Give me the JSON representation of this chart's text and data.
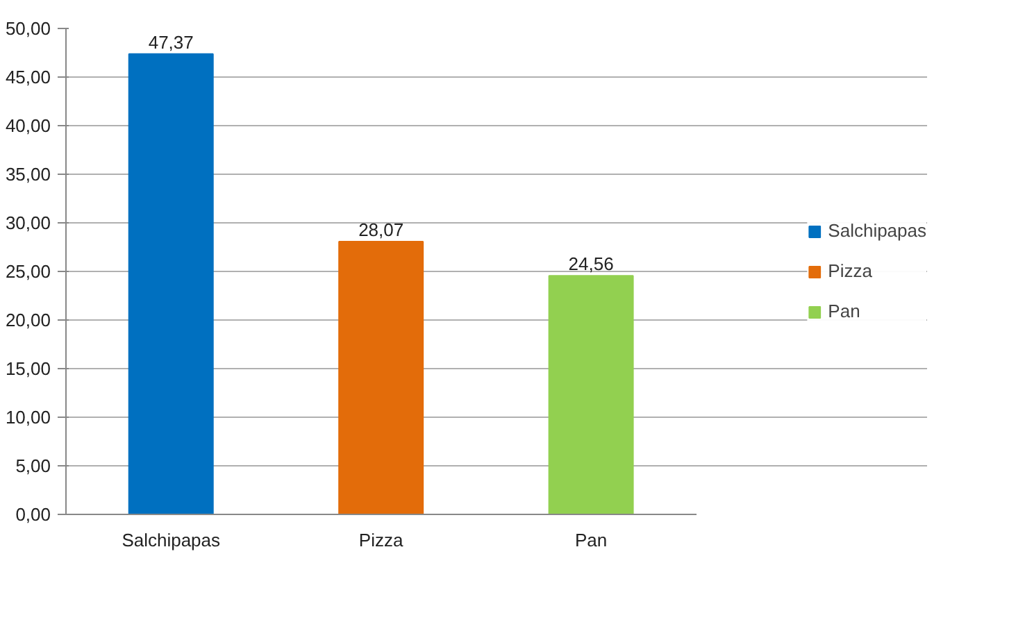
{
  "chart_data": {
    "type": "bar",
    "categories": [
      "Salchipapas",
      "Pizza",
      "Pan"
    ],
    "series": [
      {
        "name": "Salchipapas",
        "color": "#0070c0",
        "values": [
          47.37,
          null,
          null
        ],
        "value_labels": [
          "47,37",
          null,
          null
        ]
      },
      {
        "name": "Pizza",
        "color": "#e36c0a",
        "values": [
          null,
          28.07,
          null
        ],
        "value_labels": [
          null,
          "28,07",
          null
        ]
      },
      {
        "name": "Pan",
        "color": "#92d050",
        "values": [
          null,
          null,
          24.56
        ],
        "value_labels": [
          null,
          null,
          "24,56"
        ]
      }
    ],
    "ylim": [
      0,
      50
    ],
    "yticks": [
      {
        "value": 0,
        "label": "0,00"
      },
      {
        "value": 5,
        "label": "5,00"
      },
      {
        "value": 10,
        "label": "10,00"
      },
      {
        "value": 15,
        "label": "15,00"
      },
      {
        "value": 20,
        "label": "20,00"
      },
      {
        "value": 25,
        "label": "25,00"
      },
      {
        "value": 30,
        "label": "30,00"
      },
      {
        "value": 35,
        "label": "35,00"
      },
      {
        "value": 40,
        "label": "40,00"
      },
      {
        "value": 45,
        "label": "45,00"
      },
      {
        "value": 50,
        "label": "50,00"
      }
    ],
    "grid": "y",
    "legend": "right"
  }
}
